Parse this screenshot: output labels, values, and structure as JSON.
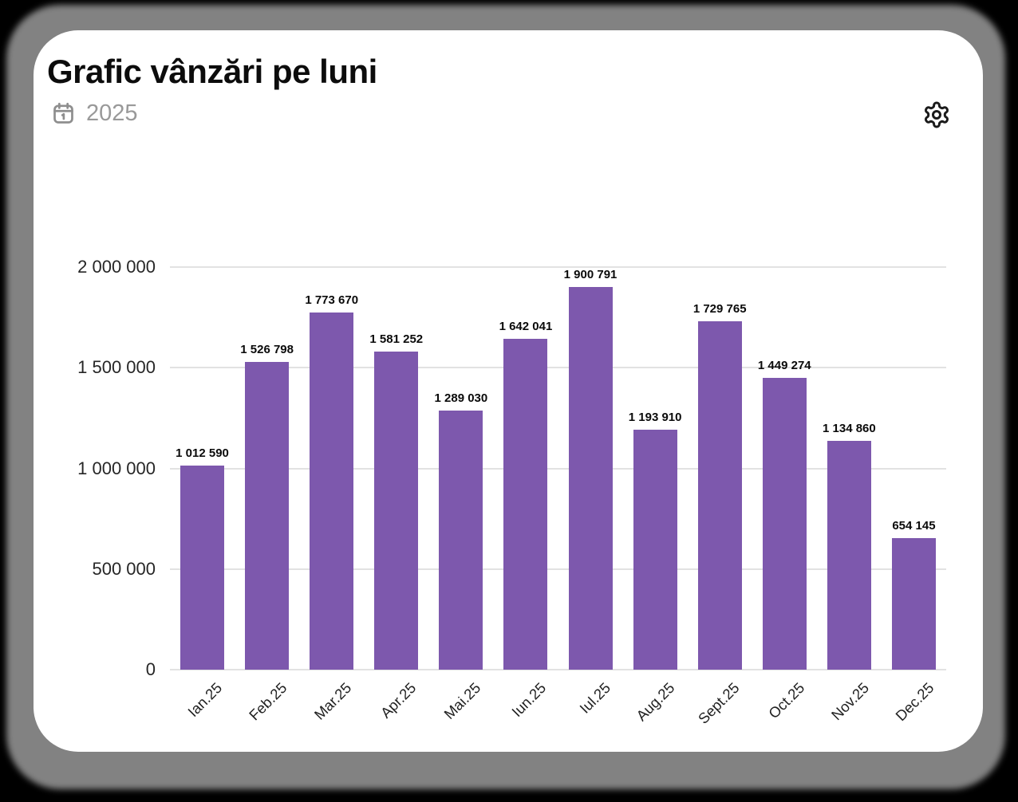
{
  "window": {
    "background_color": "#000000",
    "shadow_color": "#828282",
    "card_color": "#ffffff"
  },
  "header": {
    "title": "Grafic vânzări pe luni",
    "year": "2025",
    "calendar_icon": "calendar-icon",
    "settings_icon": "gear-icon"
  },
  "chart_data": {
    "type": "bar",
    "title": "Grafic vânzări pe luni",
    "period": "2025",
    "categories": [
      "Ian.25",
      "Feb.25",
      "Mar.25",
      "Apr.25",
      "Mai.25",
      "Iun.25",
      "Iul.25",
      "Aug.25",
      "Sept.25",
      "Oct.25",
      "Nov.25",
      "Dec.25"
    ],
    "values": [
      1012590,
      1526798,
      1773670,
      1581252,
      1289030,
      1642041,
      1900791,
      1193910,
      1729765,
      1449274,
      1134860,
      654145
    ],
    "value_labels": [
      "1 012 590",
      "1 526 798",
      "1 773 670",
      "1 581 252",
      "1 289 030",
      "1 642 041",
      "1 900 791",
      "1 193 910",
      "1 729 765",
      "1 449 274",
      "1 134 860",
      "654 145"
    ],
    "xlabel": "",
    "ylabel": "",
    "ylim": [
      0,
      2000000
    ],
    "y_ticks": [
      {
        "value": 2000000,
        "label": "2 000 000"
      },
      {
        "value": 1500000,
        "label": "1 500 000"
      },
      {
        "value": 1000000,
        "label": "1 000 000"
      },
      {
        "value": 500000,
        "label": "500 000"
      },
      {
        "value": 0,
        "label": "0"
      }
    ],
    "grid": true,
    "legend": false,
    "bar_color": "#7d58ad",
    "grid_color": "#e2e2e2"
  }
}
